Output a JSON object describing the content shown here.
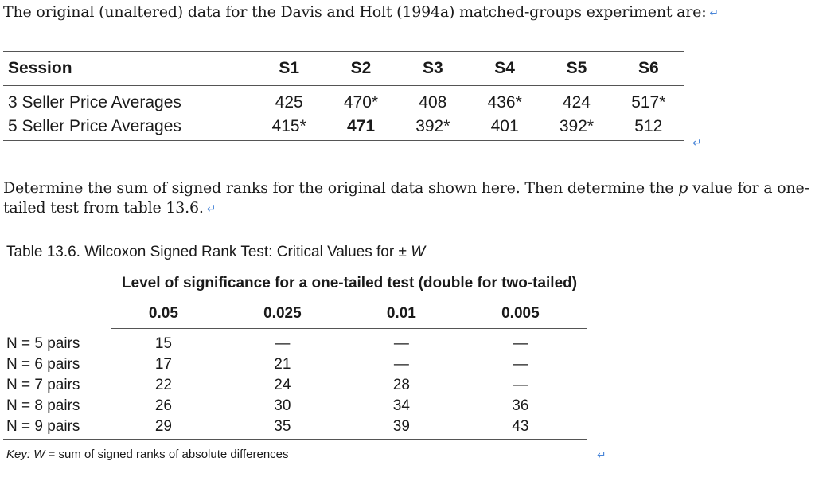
{
  "intro": {
    "text": "The original (unaltered) data for the Davis and Holt (1994a) matched-groups experiment are:",
    "return_mark": "↵"
  },
  "session_table": {
    "header": [
      "Session",
      "S1",
      "S2",
      "S3",
      "S4",
      "S5",
      "S6"
    ],
    "rows": [
      {
        "label": "3 Seller Price Averages",
        "values": [
          "425",
          "470*",
          "408",
          "436*",
          "424",
          "517*"
        ]
      },
      {
        "label": "5 Seller Price Averages",
        "values": [
          "415*",
          "471",
          "392*",
          "401",
          "392*",
          "512"
        ]
      }
    ],
    "return_mark": "↵"
  },
  "question": {
    "before_p": "Determine the sum of signed ranks for the original data shown here. Then determine the ",
    "p": "p",
    "after_p": " value for a one-tailed test from table 13.6.",
    "return_mark": "↵"
  },
  "table_136": {
    "title_prefix": "Table 13.6. Wilcoxon Signed Rank Test: Critical Values for ± ",
    "title_var": "W",
    "significance_header": "Level of significance for a one-tailed test (double for two-tailed)",
    "levels": [
      "0.05",
      "0.025",
      "0.01",
      "0.005"
    ],
    "rows": [
      {
        "label": "N = 5 pairs",
        "values": [
          "15",
          "—",
          "—",
          "—"
        ]
      },
      {
        "label": "N = 6 pairs",
        "values": [
          "17",
          "21",
          "—",
          "—"
        ]
      },
      {
        "label": "N = 7 pairs",
        "values": [
          "22",
          "24",
          "28",
          "—"
        ]
      },
      {
        "label": "N = 8 pairs",
        "values": [
          "26",
          "30",
          "34",
          "36"
        ]
      },
      {
        "label": "N = 9 pairs",
        "values": [
          "29",
          "35",
          "39",
          "43"
        ]
      }
    ]
  },
  "key": {
    "label": "Key:",
    "var": "W",
    "text": " = sum of signed ranks of absolute differences",
    "return_mark": "↵"
  }
}
